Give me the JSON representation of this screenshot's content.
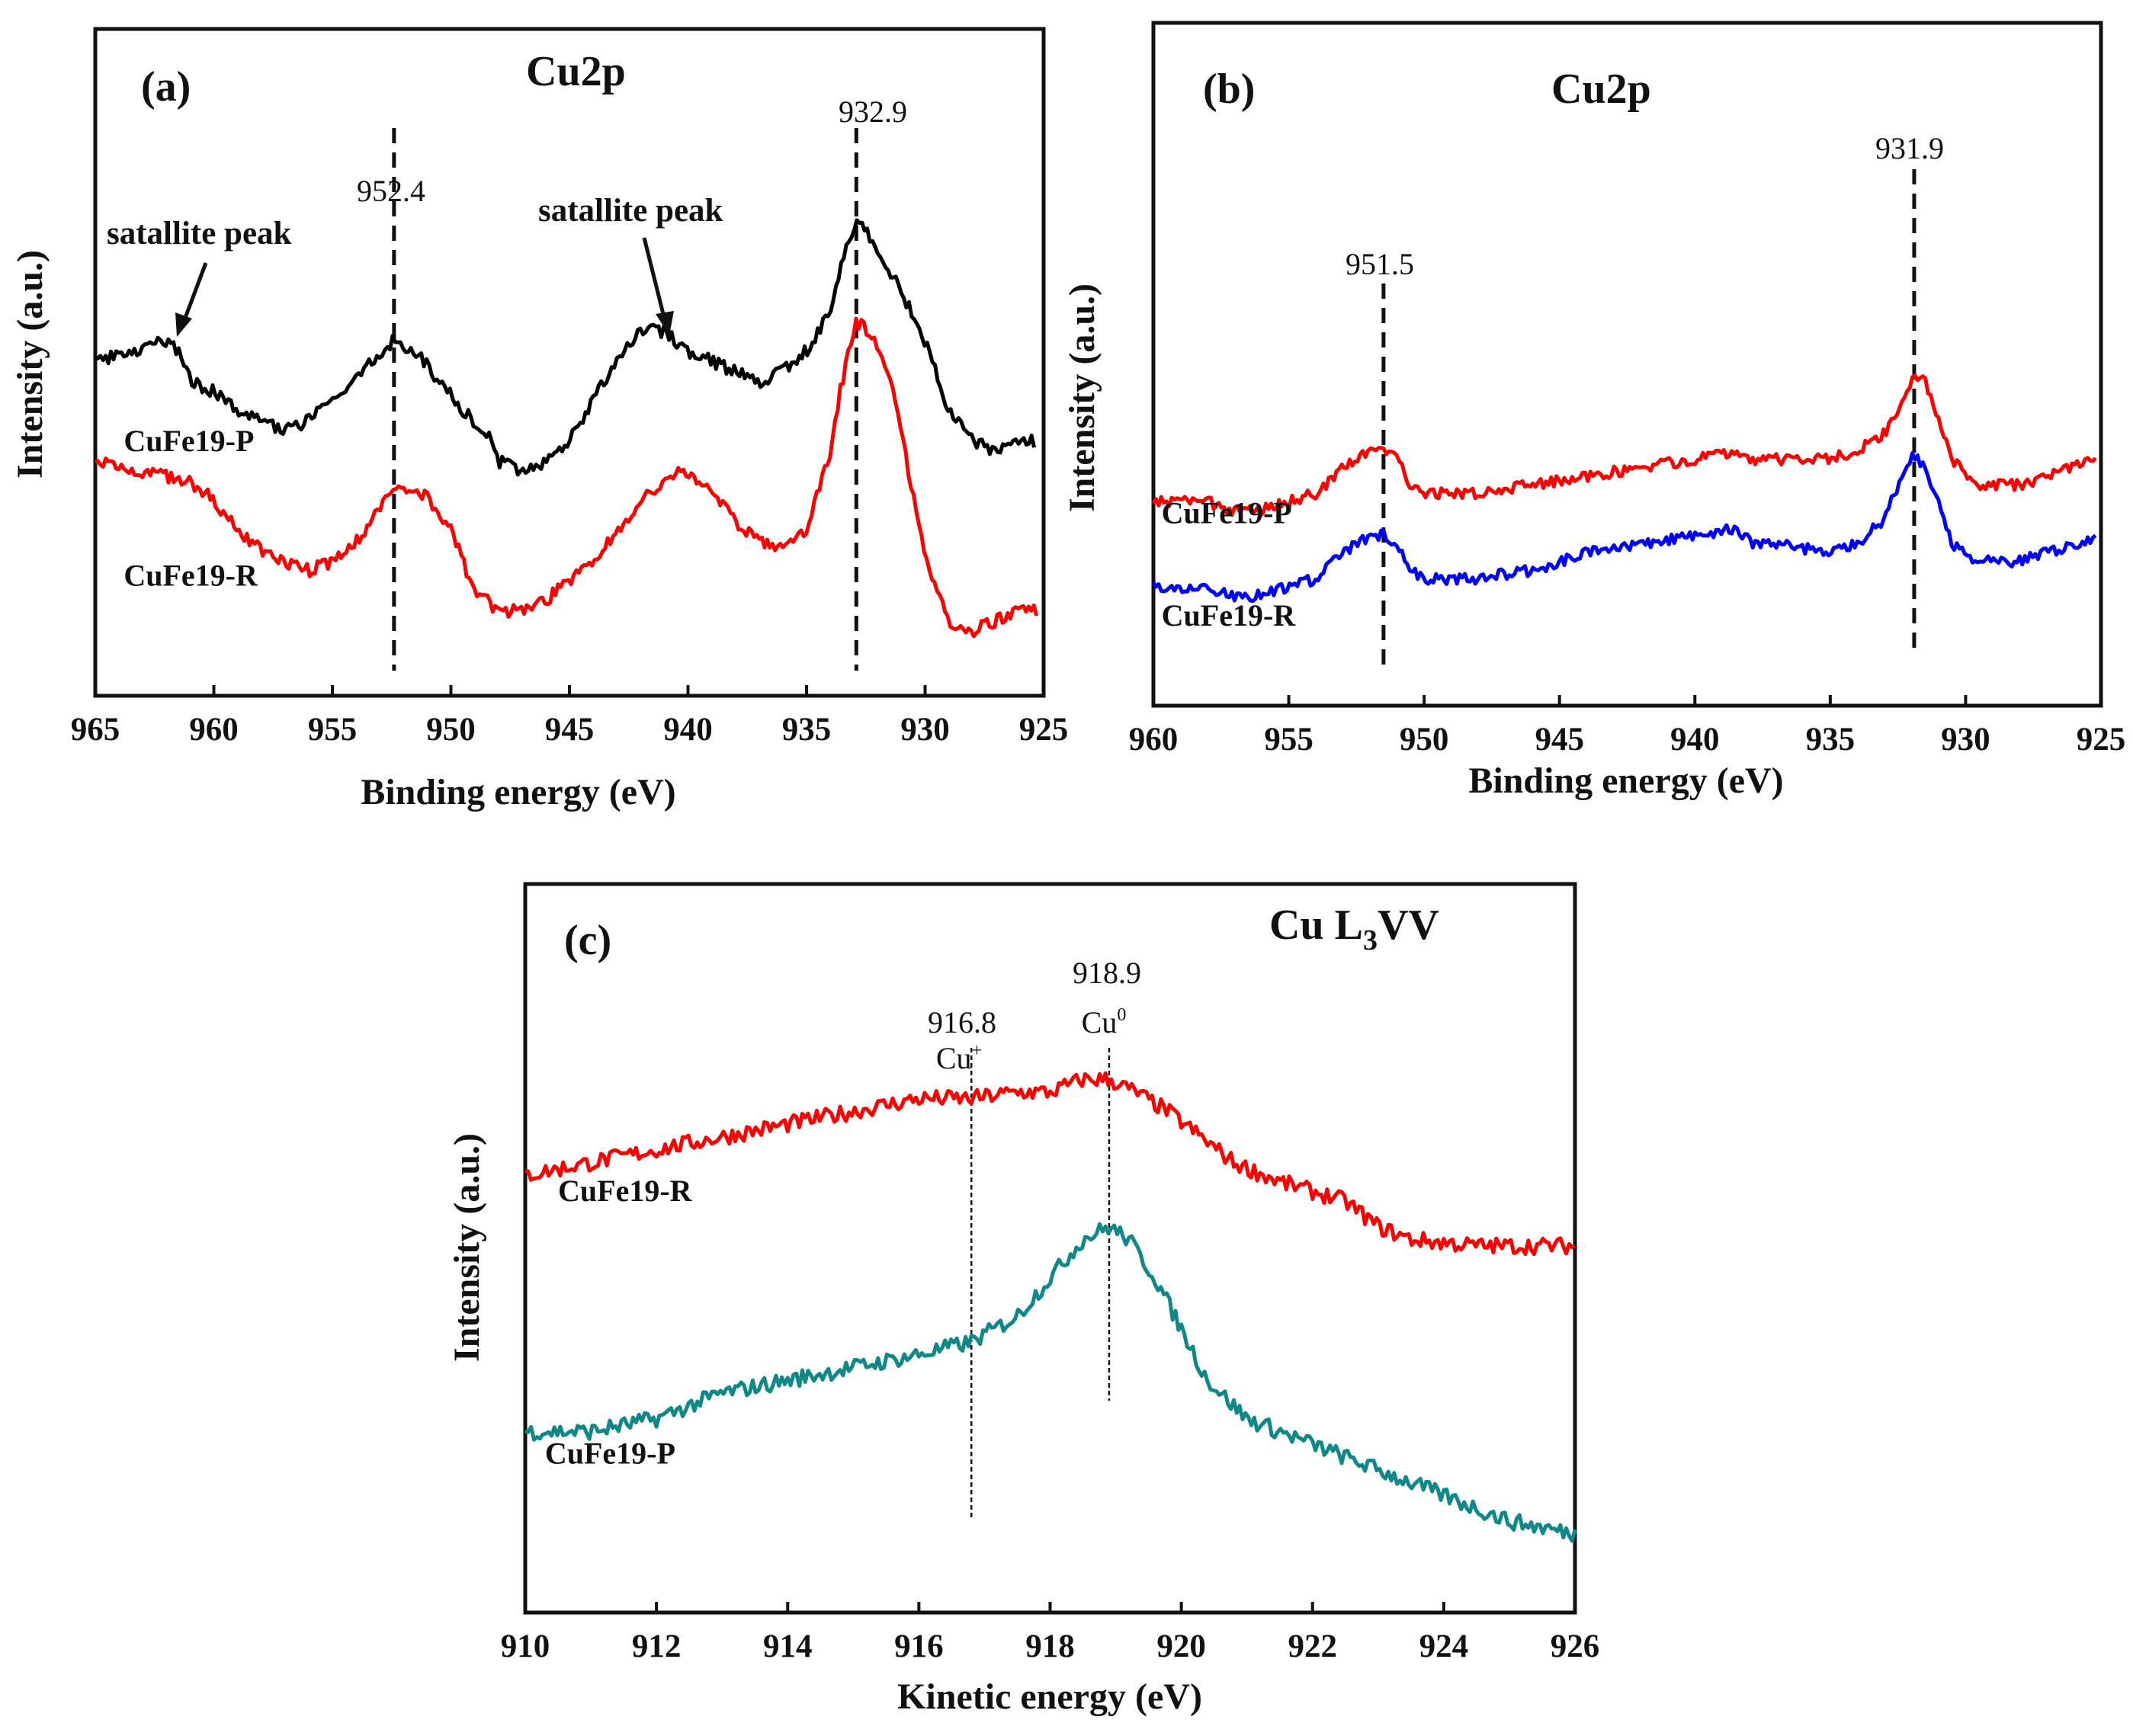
{
  "chart_data": [
    {
      "id": "a",
      "type": "line",
      "panel_label": "(a)",
      "title": "Cu2p",
      "xlabel": "Binding energy (eV)",
      "ylabel": "Intensity (a.u.)",
      "xlim": [
        965,
        925
      ],
      "ylim": [
        0,
        100
      ],
      "ticks": [
        "965",
        "960",
        "955",
        "950",
        "945",
        "940",
        "935",
        "930",
        "925"
      ],
      "series": [
        {
          "name": "CuFe19-P",
          "color": "#000000",
          "label_anchor": {
            "x": 963.8,
            "y": 44
          },
          "points": [
            [
              965,
              62
            ],
            [
              963.5,
              64
            ],
            [
              962,
              66
            ],
            [
              961.4,
              64
            ],
            [
              961,
              58
            ],
            [
              960,
              56
            ],
            [
              959,
              52
            ],
            [
              958,
              50
            ],
            [
              957,
              48
            ],
            [
              956,
              50
            ],
            [
              955,
              54
            ],
            [
              954,
              58
            ],
            [
              953,
              64
            ],
            [
              952.4,
              66
            ],
            [
              951.5,
              64
            ],
            [
              950.5,
              58
            ],
            [
              949.5,
              52
            ],
            [
              948.5,
              48
            ],
            [
              948,
              42
            ],
            [
              947,
              40
            ],
            [
              946,
              42
            ],
            [
              945,
              46
            ],
            [
              944,
              54
            ],
            [
              943,
              62
            ],
            [
              942,
              68
            ],
            [
              941,
              68
            ],
            [
              940,
              64
            ],
            [
              939,
              62
            ],
            [
              938,
              60
            ],
            [
              937,
              58
            ],
            [
              936,
              60
            ],
            [
              935,
              64
            ],
            [
              934,
              72
            ],
            [
              933.5,
              82
            ],
            [
              933,
              88
            ],
            [
              932.9,
              90
            ],
            [
              932.5,
              88
            ],
            [
              932,
              84
            ],
            [
              931,
              76
            ],
            [
              930,
              66
            ],
            [
              929,
              52
            ],
            [
              928,
              46
            ],
            [
              927,
              44
            ],
            [
              926,
              46
            ],
            [
              925.4,
              46
            ]
          ]
        },
        {
          "name": "CuFe19-R",
          "color": "#ff0000",
          "label_anchor": {
            "x": 963.8,
            "y": 17
          },
          "points": [
            [
              965,
              42
            ],
            [
              963,
              40
            ],
            [
              961,
              38
            ],
            [
              960,
              34
            ],
            [
              959,
              28
            ],
            [
              958,
              24
            ],
            [
              957,
              22
            ],
            [
              956,
              20
            ],
            [
              955,
              22
            ],
            [
              954,
              26
            ],
            [
              953,
              32
            ],
            [
              952.5,
              36
            ],
            [
              952,
              37
            ],
            [
              951,
              35
            ],
            [
              950,
              28
            ],
            [
              949,
              16
            ],
            [
              948,
              12
            ],
            [
              947,
              12
            ],
            [
              946,
              14
            ],
            [
              945,
              18
            ],
            [
              944,
              22
            ],
            [
              943,
              28
            ],
            [
              942,
              34
            ],
            [
              941,
              38
            ],
            [
              940.2,
              40
            ],
            [
              939,
              36
            ],
            [
              938,
              30
            ],
            [
              937,
              26
            ],
            [
              936,
              24
            ],
            [
              935,
              28
            ],
            [
              934,
              44
            ],
            [
              933.5,
              58
            ],
            [
              933,
              68
            ],
            [
              932.9,
              70
            ],
            [
              932.3,
              68
            ],
            [
              931.5,
              60
            ],
            [
              931,
              48
            ],
            [
              930,
              22
            ],
            [
              929,
              10
            ],
            [
              928,
              8
            ],
            [
              927,
              10
            ],
            [
              926,
              12
            ],
            [
              925.3,
              12
            ]
          ]
        }
      ],
      "annotations": {
        "peak_1": "952.4",
        "peak_2": "932.9",
        "satellite_1": "satallite peak",
        "satellite_2": "satallite peak"
      },
      "peak_lines": [
        952.4,
        932.9
      ]
    },
    {
      "id": "b",
      "type": "line",
      "panel_label": "(b)",
      "title": "Cu2p",
      "xlabel": "Binding energy (eV)",
      "ylabel": "Intensity (a.u.)",
      "xlim": [
        960,
        925
      ],
      "ylim": [
        0,
        100
      ],
      "ticks": [
        "960",
        "955",
        "950",
        "945",
        "940",
        "935",
        "930",
        "925"
      ],
      "series": [
        {
          "name": "CuFe19-P",
          "color": "#ff0000",
          "label_anchor": {
            "x": 959.7,
            "y": 31
          },
          "points": [
            [
              960,
              36
            ],
            [
              958,
              36
            ],
            [
              957,
              34
            ],
            [
              956,
              34
            ],
            [
              954,
              38
            ],
            [
              953,
              44
            ],
            [
              952,
              48
            ],
            [
              951.5,
              48
            ],
            [
              951,
              46
            ],
            [
              950.5,
              40
            ],
            [
              950,
              38
            ],
            [
              948,
              38
            ],
            [
              946,
              40
            ],
            [
              944,
              42
            ],
            [
              942,
              44
            ],
            [
              940,
              46
            ],
            [
              938.5,
              48
            ],
            [
              937.8,
              46
            ],
            [
              937,
              46
            ],
            [
              935,
              46
            ],
            [
              934,
              48
            ],
            [
              933,
              52
            ],
            [
              932.5,
              58
            ],
            [
              932,
              64
            ],
            [
              931.9,
              66
            ],
            [
              931.5,
              64
            ],
            [
              931,
              56
            ],
            [
              930.5,
              46
            ],
            [
              929.5,
              40
            ],
            [
              928,
              40
            ],
            [
              927,
              42
            ],
            [
              926,
              44
            ],
            [
              925.2,
              46
            ]
          ]
        },
        {
          "name": "CuFe19-R",
          "color": "#0000ff",
          "label_anchor": {
            "x": 959.7,
            "y": 7
          },
          "points": [
            [
              960,
              16
            ],
            [
              958,
              16
            ],
            [
              957,
              14
            ],
            [
              956,
              14
            ],
            [
              954,
              18
            ],
            [
              953,
              24
            ],
            [
              952,
              28
            ],
            [
              951.5,
              28
            ],
            [
              951,
              26
            ],
            [
              950.5,
              20
            ],
            [
              950,
              18
            ],
            [
              948,
              18
            ],
            [
              946,
              20
            ],
            [
              944,
              24
            ],
            [
              942,
              26
            ],
            [
              940,
              28
            ],
            [
              938.5,
              30
            ],
            [
              937.8,
              26
            ],
            [
              937,
              26
            ],
            [
              935,
              24
            ],
            [
              934,
              26
            ],
            [
              933,
              32
            ],
            [
              932.5,
              40
            ],
            [
              932,
              46
            ],
            [
              931.9,
              47
            ],
            [
              931.5,
              44
            ],
            [
              931,
              36
            ],
            [
              930.5,
              26
            ],
            [
              929.5,
              22
            ],
            [
              928,
              22
            ],
            [
              927,
              24
            ],
            [
              926,
              26
            ],
            [
              925.2,
              28
            ]
          ]
        }
      ],
      "annotations": {
        "peak_1": "951.5",
        "peak_2": "931.9"
      },
      "peak_lines": [
        951.5,
        931.9
      ]
    },
    {
      "id": "c",
      "type": "line",
      "panel_label": "(c)",
      "title_main": "Cu L",
      "title_sub": "3",
      "title_tail": "VV",
      "xlabel": "Kinetic energy (eV)",
      "ylabel": "Intensity (a.u.)",
      "xlim": [
        910,
        926
      ],
      "ylim": [
        0,
        100
      ],
      "ticks": [
        "910",
        "912",
        "914",
        "916",
        "918",
        "920",
        "922",
        "924",
        "926"
      ],
      "series": [
        {
          "name": "CuFe19-R",
          "color": "#ff0000",
          "label_anchor": {
            "x": 910.5,
            "y": 60
          },
          "points": [
            [
              910,
              64
            ],
            [
              911,
              66
            ],
            [
              912,
              68
            ],
            [
              913,
              70
            ],
            [
              914,
              72
            ],
            [
              915,
              74
            ],
            [
              916,
              76
            ],
            [
              916.8,
              76
            ],
            [
              917.5,
              77
            ],
            [
              918,
              77
            ],
            [
              918.5,
              79
            ],
            [
              918.9,
              79
            ],
            [
              919.3,
              77
            ],
            [
              919.8,
              74
            ],
            [
              920.3,
              70
            ],
            [
              920.8,
              66
            ],
            [
              921.5,
              63
            ],
            [
              922.5,
              60
            ],
            [
              923,
              56
            ],
            [
              923.5,
              54
            ],
            [
              924.5,
              53
            ],
            [
              925.5,
              53
            ],
            [
              926,
              53
            ]
          ]
        },
        {
          "name": "CuFe19-P",
          "color": "#118888",
          "label_anchor": {
            "x": 910.3,
            "y": 19
          },
          "points": [
            [
              910,
              24
            ],
            [
              911,
              24
            ],
            [
              912,
              26
            ],
            [
              913,
              30
            ],
            [
              914,
              32
            ],
            [
              915,
              34
            ],
            [
              916,
              36
            ],
            [
              916.8,
              38
            ],
            [
              917.5,
              42
            ],
            [
              918,
              48
            ],
            [
              918.5,
              54
            ],
            [
              918.9,
              56
            ],
            [
              919.2,
              54
            ],
            [
              919.6,
              48
            ],
            [
              920,
              40
            ],
            [
              920.4,
              32
            ],
            [
              921,
              26
            ],
            [
              922,
              22
            ],
            [
              923,
              18
            ],
            [
              924,
              14
            ],
            [
              925,
              10
            ],
            [
              926,
              8
            ]
          ]
        }
      ],
      "annotations": {
        "peak_cu_plus_value": "916.8",
        "peak_cu_plus_label": "Cu",
        "peak_cu_plus_sup": "+",
        "peak_cu0_value": "918.9",
        "peak_cu0_label": "Cu",
        "peak_cu0_sup": "0"
      },
      "peak_lines": [
        916.8,
        918.9
      ]
    }
  ]
}
